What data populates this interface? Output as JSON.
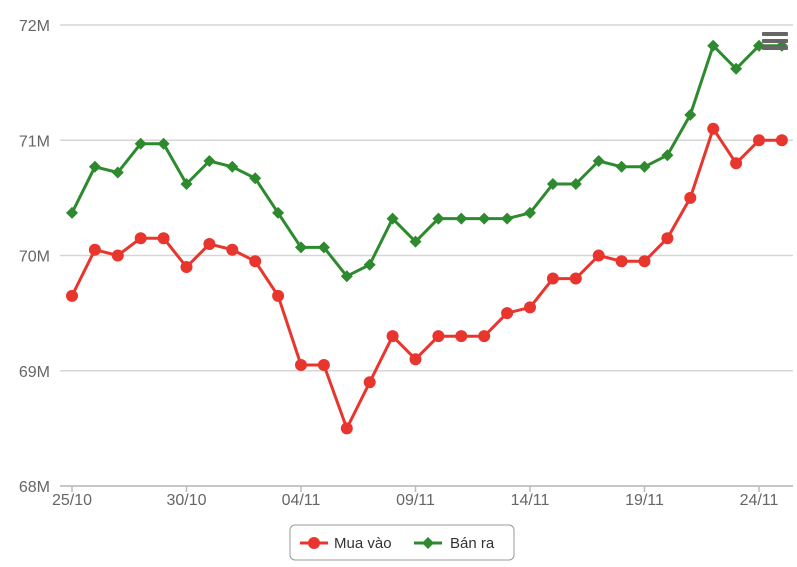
{
  "chart_data": {
    "type": "line",
    "x": [
      "25/10",
      "26/10",
      "27/10",
      "28/10",
      "29/10",
      "30/10",
      "31/10",
      "01/11",
      "02/11",
      "03/11",
      "04/11",
      "05/11",
      "06/11",
      "07/11",
      "08/11",
      "09/11",
      "10/11",
      "11/11",
      "12/11",
      "13/11",
      "14/11",
      "15/11",
      "16/11",
      "17/11",
      "18/11",
      "19/11",
      "20/11",
      "21/11",
      "22/11",
      "23/11",
      "24/11",
      "25/11"
    ],
    "x_tick_labels": [
      "25/10",
      "30/10",
      "04/11",
      "09/11",
      "14/11",
      "19/11",
      "24/11"
    ],
    "x_tick_index": [
      0,
      5,
      10,
      15,
      20,
      25,
      30
    ],
    "y_tick_labels": [
      "68M",
      "69M",
      "70M",
      "71M",
      "72M"
    ],
    "y_tick_values": [
      68,
      69,
      70,
      71,
      72
    ],
    "ylim": [
      68,
      72
    ],
    "y_unit": "million",
    "grid": "horizontal",
    "legend_position": "bottom-center",
    "series": [
      {
        "name": "Mua vào",
        "color": "#e8352e",
        "marker": "circle",
        "values": [
          69.65,
          70.05,
          70.0,
          70.15,
          70.15,
          69.9,
          70.1,
          70.05,
          69.95,
          69.65,
          69.05,
          69.05,
          68.5,
          68.9,
          69.3,
          69.1,
          69.3,
          69.3,
          69.3,
          69.5,
          69.55,
          69.8,
          69.8,
          70.0,
          69.95,
          69.95,
          70.15,
          70.5,
          71.1,
          70.8,
          71.0,
          71.0
        ]
      },
      {
        "name": "Bán ra",
        "color": "#2e8a2e",
        "marker": "diamond",
        "values": [
          70.37,
          70.77,
          70.72,
          70.97,
          70.97,
          70.62,
          70.82,
          70.77,
          70.67,
          70.37,
          70.07,
          70.07,
          69.82,
          69.92,
          70.32,
          70.12,
          70.32,
          70.32,
          70.32,
          70.32,
          70.37,
          70.62,
          70.62,
          70.82,
          70.77,
          70.77,
          70.87,
          71.22,
          71.82,
          71.62,
          71.82,
          71.82
        ]
      }
    ]
  },
  "menu": {
    "icon": "hamburger-menu-icon"
  }
}
